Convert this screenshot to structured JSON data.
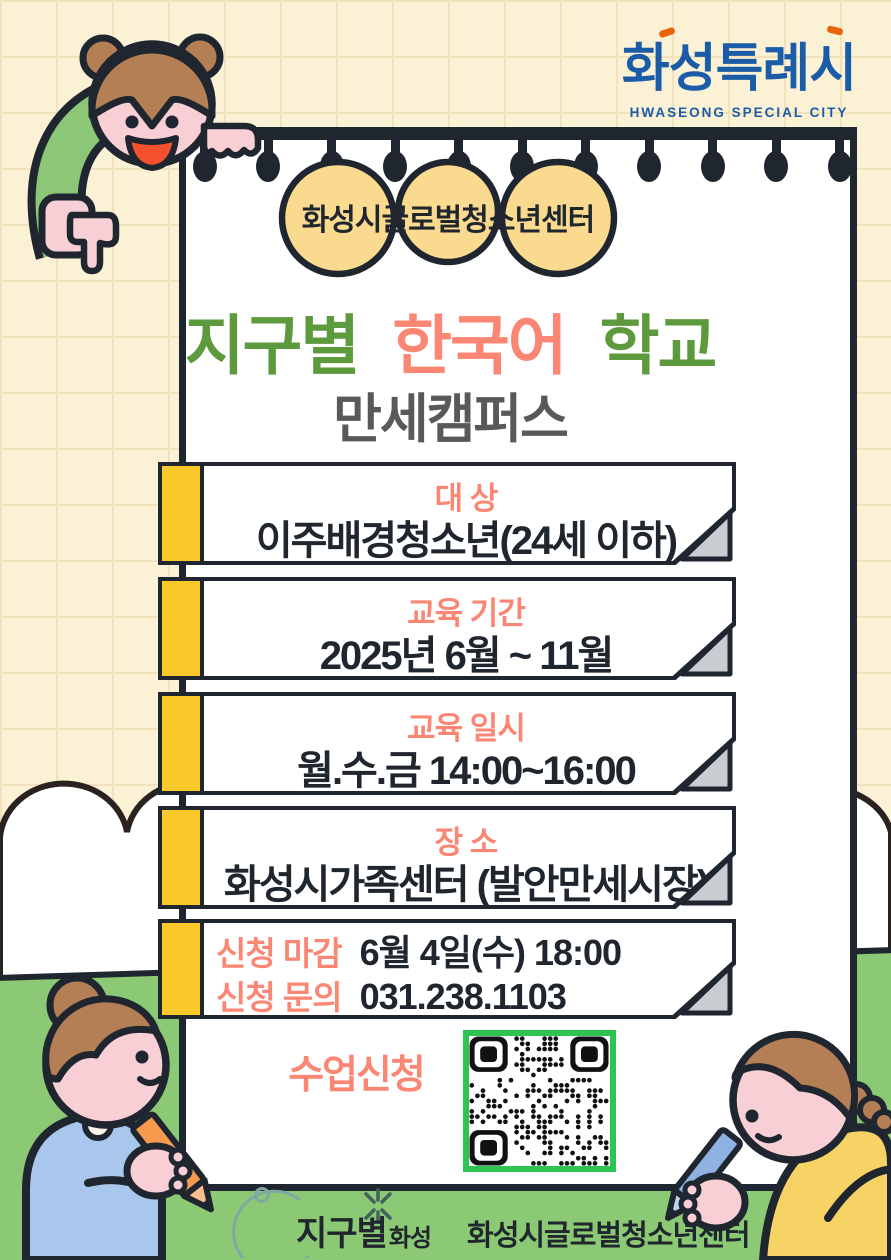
{
  "header_logo": {
    "city_name": "화성특례시",
    "city_name_en": "HWASEONG SPECIAL CITY"
  },
  "badge": {
    "label": "화성시글로벌청소년센터"
  },
  "title": {
    "word1": "지구별",
    "word2": "한국어",
    "word3": "학교",
    "subtitle": "만세캠퍼스"
  },
  "info_boxes": [
    {
      "label": "대 상",
      "value": "이주배경청소년(24세 이하)"
    },
    {
      "label": "교육 기간",
      "value": "2025년 6월 ~ 11월"
    },
    {
      "label": "교육 일시",
      "value": "월.수.금 14:00~16:00"
    },
    {
      "label": "장 소",
      "value": "화성시가족센터 (발안만세시장)"
    }
  ],
  "deadline_box": {
    "rows": [
      {
        "label": "신청 마감",
        "value": "6월 4일(수) 18:00"
      },
      {
        "label": "신청 문의",
        "value": "031.238.1103"
      }
    ]
  },
  "apply": {
    "label": "수업신청",
    "qr": "class-application-qr-code"
  },
  "footer": {
    "brand_main": "지구별",
    "brand_sub": "화성",
    "org": "화성시글로벌청소년센터"
  },
  "colors": {
    "coral": "#FB8674",
    "title_green": "#5C9A3D",
    "subtitle_gray": "#595959",
    "accent_yellow": "#FBC829",
    "badge_yellow": "#FADA8E",
    "qr_green": "#2EC452",
    "grass_green": "#8BC974",
    "cream_bg": "#FBF2D6",
    "outline_dark": "#1F2630",
    "logo_blue": "#1B5CA8",
    "fold_gray": "#C9CDD2"
  }
}
